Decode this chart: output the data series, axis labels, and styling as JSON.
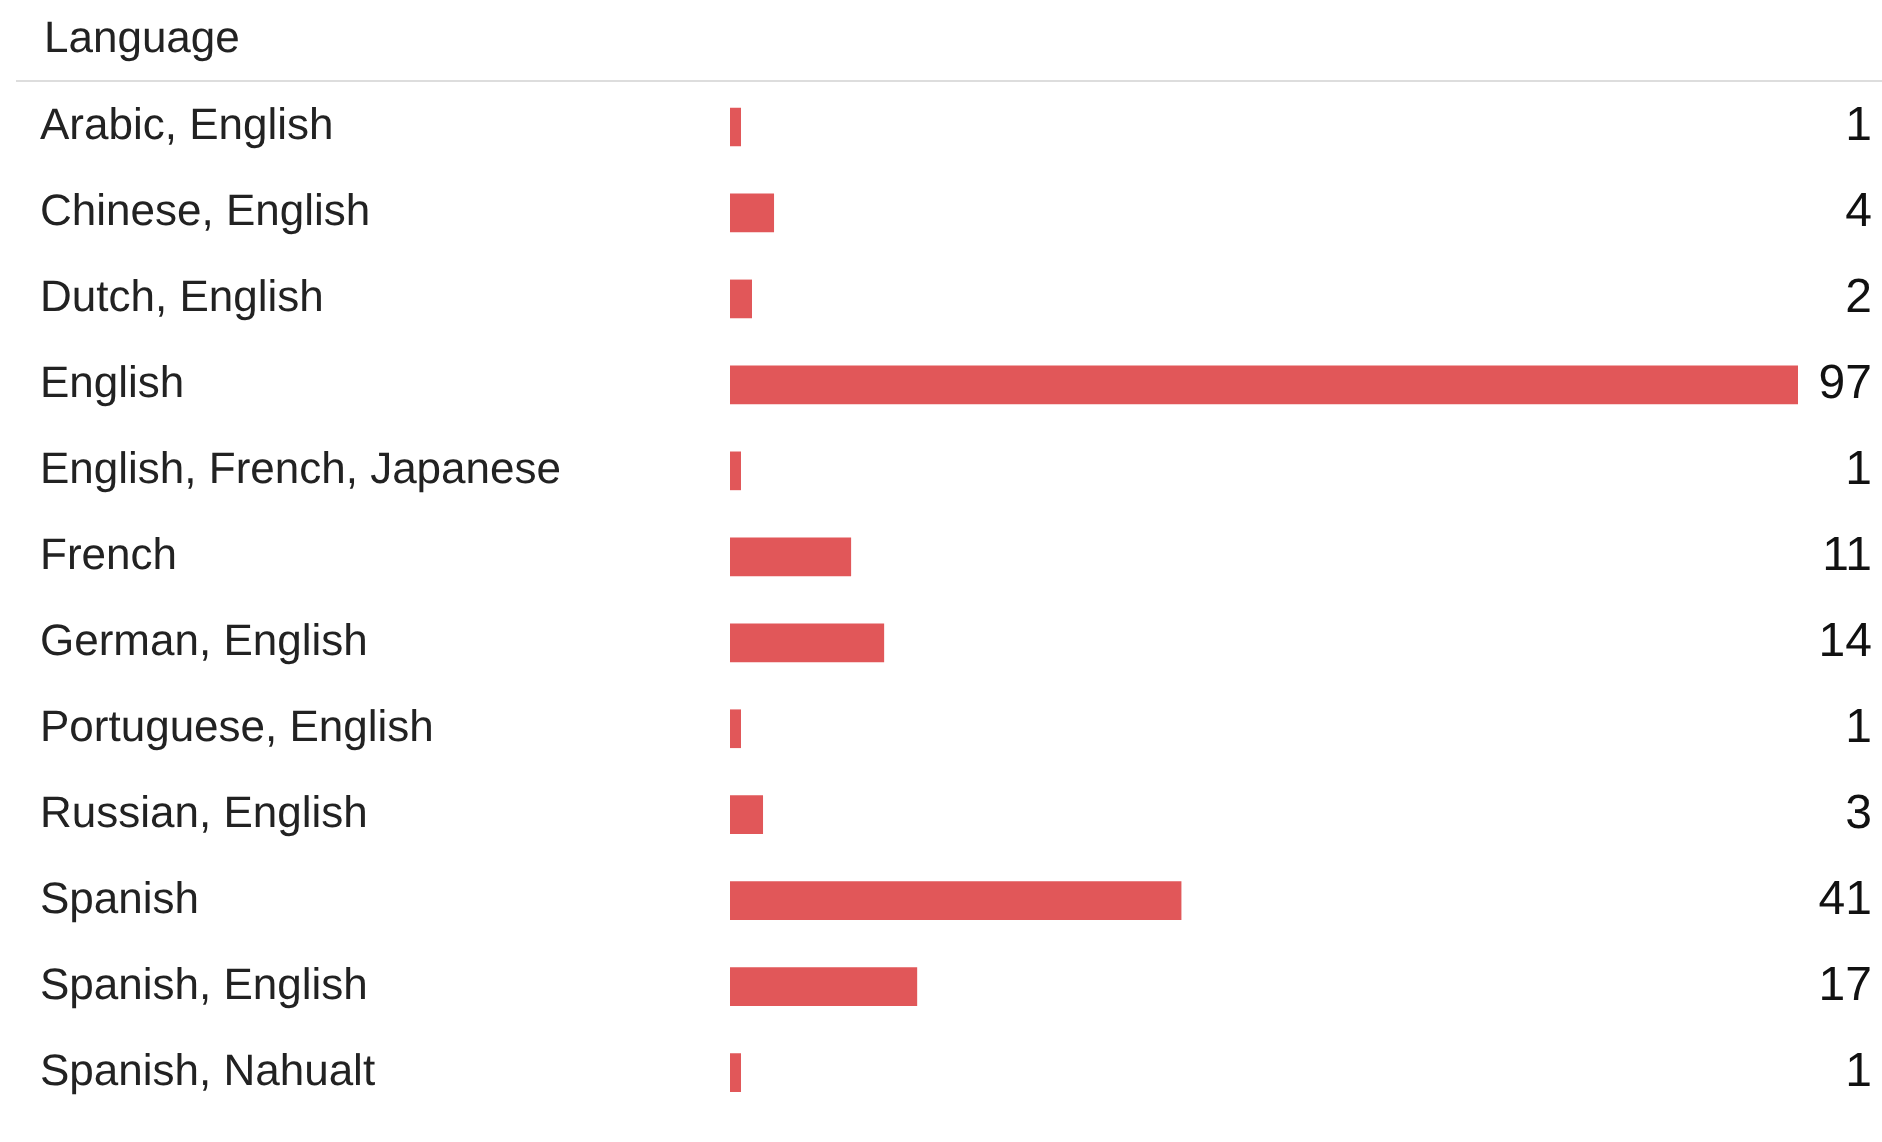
{
  "chart_data": {
    "type": "bar",
    "orientation": "horizontal",
    "ylabel": "Language",
    "categories": [
      "Arabic, English",
      "Chinese, English",
      "Dutch, English",
      "English",
      "English, French, Japanese",
      "French",
      "German, English",
      "Portuguese, English",
      "Russian, English",
      "Spanish",
      "Spanish, English",
      "Spanish, Nahualt"
    ],
    "values": [
      1,
      4,
      2,
      97,
      1,
      11,
      14,
      1,
      3,
      41,
      17,
      1
    ],
    "color": "#e15759",
    "data_labels": true,
    "legend": false
  }
}
